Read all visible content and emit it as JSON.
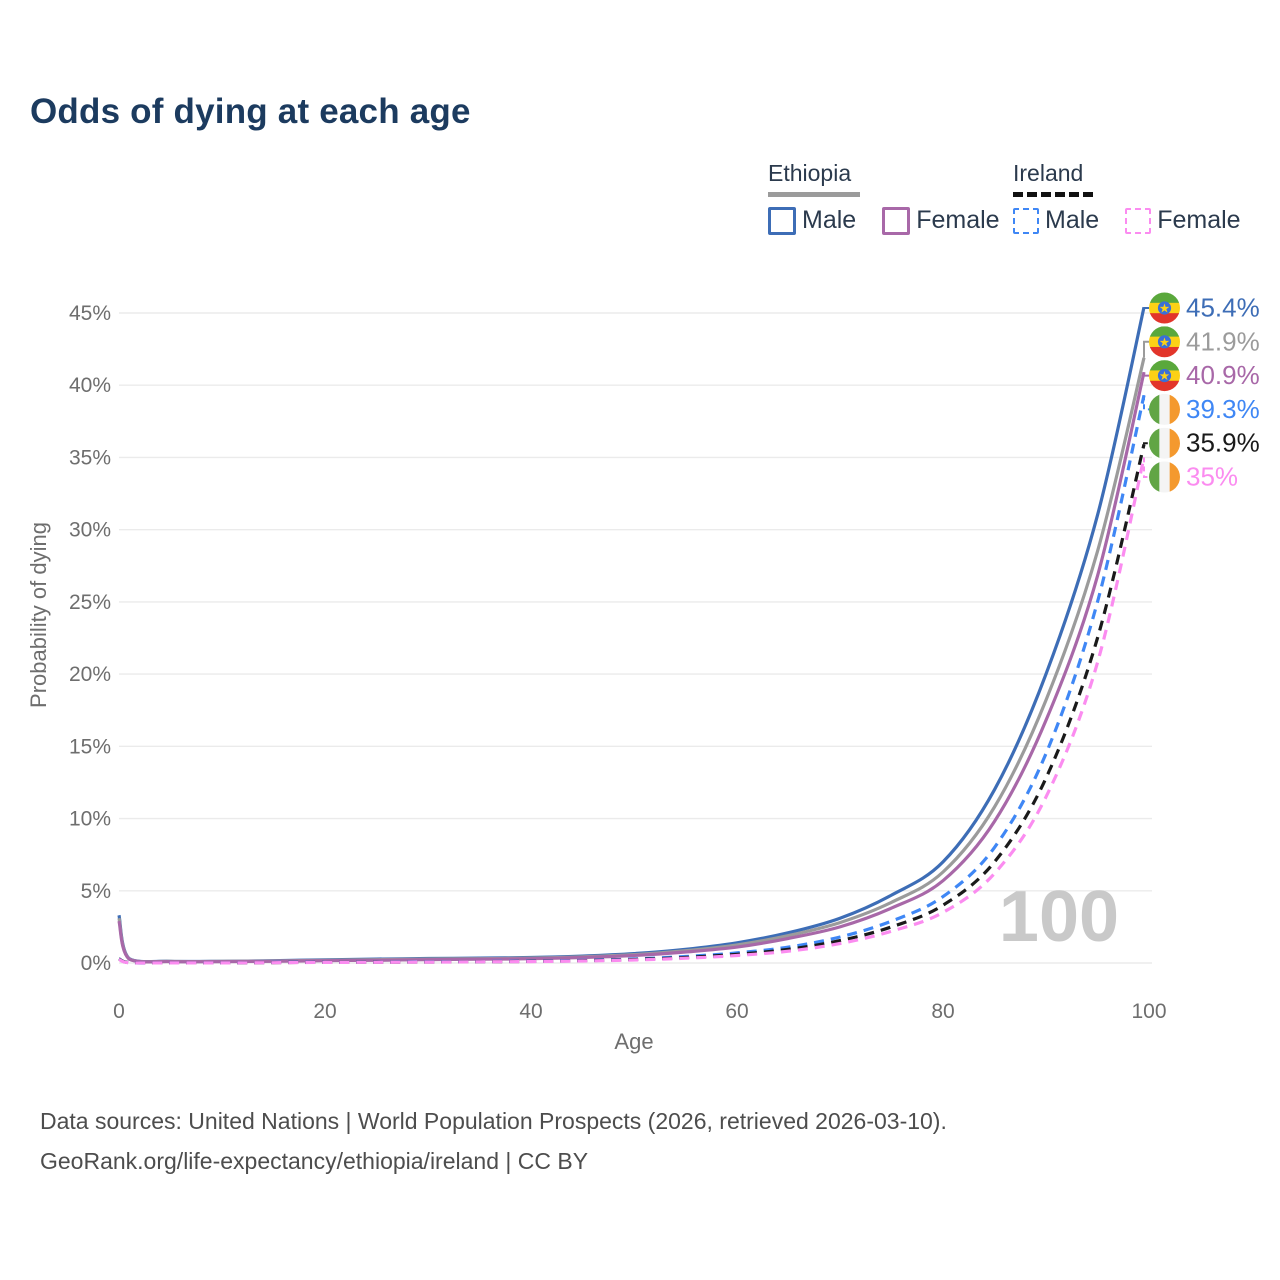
{
  "title": "Odds of dying at each age",
  "legend": {
    "groups": [
      {
        "name": "Ethiopia",
        "line_style": "solid",
        "underline_color": "#9b9b9b",
        "items": [
          {
            "label": "Male",
            "color": "#3d6db6"
          },
          {
            "label": "Female",
            "color": "#a868a8"
          }
        ]
      },
      {
        "name": "Ireland",
        "line_style": "dashed",
        "underline_color": "#111111",
        "items": [
          {
            "label": "Male",
            "color": "#3f87f5"
          },
          {
            "label": "Female",
            "color": "#fb8cf0"
          }
        ]
      }
    ]
  },
  "watermark": "100",
  "footer": {
    "line1": "Data sources: United Nations | World Population Prospects (2026, retrieved 2026-03-10).",
    "line2": "GeoRank.org/life-expectancy/ethiopia/ireland | CC BY"
  },
  "colors": {
    "title": "#1c3b5f",
    "axis_text": "#6e6e6e",
    "gridline": "#ebebeb",
    "watermark": "#c9c9c9",
    "ethiopia_male": "#3d6db6",
    "ethiopia_all": "#9b9b9b",
    "ethiopia_female": "#a868a8",
    "ireland_male": "#3f87f5",
    "ireland_all": "#1a1a1a",
    "ireland_female": "#fb8cf0"
  },
  "chart_data": {
    "type": "line",
    "title": "Odds of dying at each age",
    "xlabel": "Age",
    "ylabel": "Probability of dying",
    "xlim": [
      0,
      100
    ],
    "ylim": [
      0,
      45
    ],
    "xticks": [
      0,
      20,
      40,
      60,
      80,
      100
    ],
    "yticks": [
      0,
      5,
      10,
      15,
      20,
      25,
      30,
      35,
      40,
      45
    ],
    "ytick_suffix": "%",
    "grid": "horizontal",
    "legend_position": "top-right",
    "x": [
      0,
      1,
      5,
      10,
      15,
      20,
      25,
      30,
      35,
      40,
      45,
      50,
      55,
      60,
      65,
      70,
      75,
      80,
      85,
      90,
      95,
      100
    ],
    "series": [
      {
        "name": "Ethiopia Male",
        "country": "Ethiopia",
        "flag": "ethiopia",
        "dash": "solid",
        "color": "#3d6db6",
        "end_label": "45.4%",
        "values": [
          3.3,
          0.3,
          0.12,
          0.12,
          0.16,
          0.22,
          0.27,
          0.31,
          0.34,
          0.38,
          0.48,
          0.65,
          0.95,
          1.4,
          2.1,
          3.1,
          4.7,
          7.0,
          12.0,
          20.0,
          31.0,
          45.4
        ]
      },
      {
        "name": "Ethiopia Both sexes",
        "country": "Ethiopia",
        "flag": "ethiopia",
        "dash": "solid",
        "color": "#9b9b9b",
        "end_label": "41.9%",
        "values": [
          3.1,
          0.28,
          0.11,
          0.11,
          0.14,
          0.19,
          0.23,
          0.27,
          0.3,
          0.34,
          0.43,
          0.58,
          0.85,
          1.25,
          1.9,
          2.8,
          4.2,
          6.3,
          10.8,
          18.2,
          28.5,
          41.9
        ]
      },
      {
        "name": "Ethiopia Female",
        "country": "Ethiopia",
        "flag": "ethiopia",
        "dash": "solid",
        "color": "#a868a8",
        "end_label": "40.9%",
        "values": [
          2.9,
          0.26,
          0.1,
          0.1,
          0.12,
          0.16,
          0.19,
          0.23,
          0.26,
          0.3,
          0.38,
          0.52,
          0.76,
          1.1,
          1.7,
          2.5,
          3.8,
          5.7,
          9.8,
          16.8,
          26.8,
          40.9
        ]
      },
      {
        "name": "Ireland Male",
        "country": "Ireland",
        "flag": "ireland",
        "dash": "dashed",
        "color": "#3f87f5",
        "end_label": "39.3%",
        "values": [
          0.3,
          0.03,
          0.01,
          0.01,
          0.04,
          0.06,
          0.07,
          0.08,
          0.1,
          0.13,
          0.18,
          0.28,
          0.45,
          0.7,
          1.1,
          1.8,
          2.9,
          4.6,
          8.0,
          14.5,
          25.0,
          39.3
        ]
      },
      {
        "name": "Ireland Both sexes",
        "country": "Ireland",
        "flag": "ireland",
        "dash": "dashed",
        "color": "#1a1a1a",
        "end_label": "35.9%",
        "values": [
          0.28,
          0.03,
          0.01,
          0.01,
          0.03,
          0.05,
          0.06,
          0.07,
          0.09,
          0.11,
          0.16,
          0.24,
          0.38,
          0.6,
          0.95,
          1.55,
          2.5,
          4.0,
          7.0,
          12.8,
          22.5,
          35.9
        ]
      },
      {
        "name": "Ireland Female",
        "country": "Ireland",
        "flag": "ireland",
        "dash": "dashed",
        "color": "#fb8cf0",
        "end_label": "35%",
        "values": [
          0.25,
          0.02,
          0.01,
          0.01,
          0.02,
          0.04,
          0.05,
          0.06,
          0.08,
          0.1,
          0.14,
          0.21,
          0.33,
          0.52,
          0.82,
          1.35,
          2.2,
          3.5,
          6.2,
          11.5,
          20.8,
          35.0
        ]
      }
    ],
    "flag_colors": {
      "ethiopia": {
        "top": "#5aa83c",
        "middle": "#fcd116",
        "bottom": "#e2352b",
        "emblem_disc": "#3a6fd8",
        "emblem_star": "#fcd116"
      },
      "ireland": {
        "left": "#61a545",
        "middle": "#f4f4f4",
        "right": "#f4992e"
      }
    }
  }
}
